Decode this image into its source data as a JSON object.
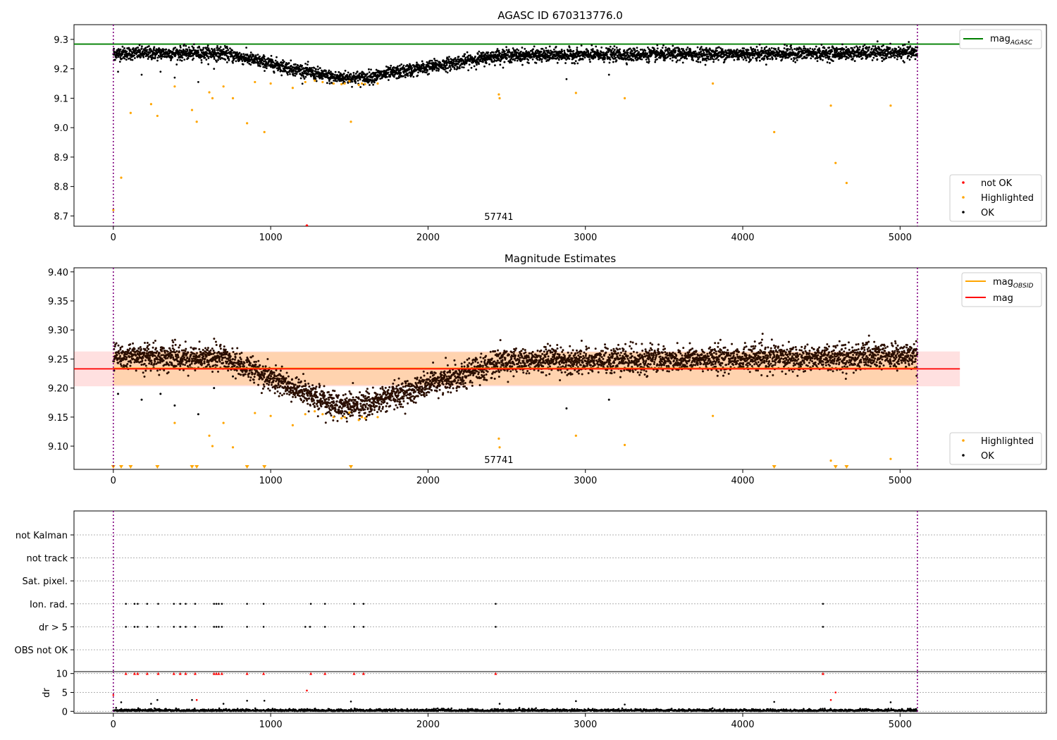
{
  "chart_data": [
    {
      "type": "scatter",
      "title": "AGASC ID 670313776.0",
      "xlabel": "",
      "ylabel": "",
      "xlim": [
        -250,
        5930
      ],
      "ylim": [
        8.665,
        9.35
      ],
      "xticks": [
        0,
        1000,
        2000,
        3000,
        4000,
        5000
      ],
      "yticks": [
        8.7,
        8.8,
        8.9,
        9.0,
        9.1,
        9.2,
        9.3
      ],
      "ytick_labels": [
        "8.7",
        "8.8",
        "8.9",
        "9.0",
        "9.1",
        "9.2",
        "9.3"
      ],
      "vlines": [
        0,
        5110
      ],
      "annotation": "57741",
      "hlines": [
        {
          "name": "mag_AGASC",
          "y": 9.284,
          "color": "#008000"
        }
      ],
      "series": [
        {
          "name": "not OK",
          "color": "#ff0000",
          "x": [
            1230
          ],
          "y": [
            8.667
          ]
        },
        {
          "name": "Highlighted",
          "color": "#ffa500",
          "x": [
            0,
            50,
            110,
            240,
            280,
            390,
            500,
            530,
            610,
            630,
            700,
            760,
            850,
            900,
            960,
            1000,
            1140,
            1220,
            1280,
            1330,
            1400,
            1450,
            1470,
            1500,
            1510,
            1560,
            1580,
            1600,
            1680,
            2450,
            2455,
            2940,
            3250,
            3810,
            4200,
            4560,
            4590,
            4660,
            4940
          ],
          "y": [
            8.72,
            8.83,
            9.05,
            9.08,
            9.04,
            9.14,
            9.06,
            9.02,
            9.12,
            9.1,
            9.14,
            9.1,
            9.015,
            9.155,
            8.985,
            9.15,
            9.135,
            9.155,
            9.16,
            9.155,
            9.15,
            9.148,
            9.15,
            9.158,
            9.02,
            9.145,
            9.15,
            9.148,
            9.15,
            9.113,
            9.1,
            9.118,
            9.1,
            9.15,
            8.985,
            9.075,
            8.88,
            8.812,
            9.075
          ]
        },
        {
          "name": "OK",
          "color": "#000000",
          "x_range": [
            0,
            5110
          ],
          "y_model": "light-curve"
        }
      ],
      "legend": [
        {
          "label": "not OK",
          "color": "#ff0000"
        },
        {
          "label": "Highlighted",
          "color": "#ffa500"
        },
        {
          "label": "OK",
          "color": "#000000"
        }
      ],
      "legend_line": {
        "label": "mag",
        "sub": "AGASC",
        "color": "#008000"
      },
      "legend_placement": "top-right / lower-right",
      "grid": false
    },
    {
      "type": "scatter",
      "title": "Magnitude Estimates",
      "xlabel": "",
      "ylabel": "",
      "xlim": [
        -250,
        5930
      ],
      "ylim": [
        9.06,
        9.407
      ],
      "xticks": [
        0,
        1000,
        2000,
        3000,
        4000,
        5000
      ],
      "yticks": [
        9.1,
        9.15,
        9.2,
        9.25,
        9.3,
        9.35,
        9.4
      ],
      "ytick_labels": [
        "9.10",
        "9.15",
        "9.20",
        "9.25",
        "9.30",
        "9.35",
        "9.40"
      ],
      "vlines": [
        0,
        5110
      ],
      "annotation": "57741",
      "mag_obsid": 9.234,
      "mag": 9.233,
      "mag_band": [
        9.203,
        9.263
      ],
      "mag_obsid_band": [
        9.205,
        9.262
      ],
      "series": [
        {
          "name": "Highlighted",
          "color": "#ffa500",
          "x": [
            390,
            610,
            630,
            700,
            760,
            900,
            1000,
            1140,
            1220,
            1280,
            1330,
            1400,
            1450,
            1470,
            1500,
            1560,
            1580,
            1600,
            1680,
            2450,
            2455,
            2940,
            3250,
            3810,
            4560,
            4940
          ],
          "y": [
            9.14,
            9.118,
            9.1,
            9.14,
            9.098,
            9.157,
            9.152,
            9.136,
            9.155,
            9.16,
            9.155,
            9.15,
            9.148,
            9.15,
            9.158,
            9.145,
            9.15,
            9.148,
            9.15,
            9.113,
            9.098,
            9.118,
            9.102,
            9.152,
            9.075,
            9.078
          ]
        },
        {
          "name": "OK",
          "color": "#000000",
          "x_range": [
            0,
            5110
          ],
          "y_model": "light-curve"
        }
      ],
      "below_limit_markers_x": [
        0,
        50,
        110,
        280,
        500,
        530,
        850,
        960,
        1510,
        4200,
        4590,
        4660
      ],
      "legend": [
        {
          "label": "Highlighted",
          "color": "#ffa500"
        },
        {
          "label": "OK",
          "color": "#000000"
        }
      ],
      "legend_lines": [
        {
          "label": "mag",
          "sub": "OBSID",
          "color": "#ffa500"
        },
        {
          "label": "mag",
          "sub": "",
          "color": "#ff0000"
        }
      ],
      "grid": false
    },
    {
      "type": "scatter",
      "title": "",
      "xlim": [
        -250,
        5930
      ],
      "xticks": [
        0,
        1000,
        2000,
        3000,
        4000,
        5000
      ],
      "vlines": [
        0,
        5110
      ],
      "flag_rows": [
        "not Kalman",
        "not track",
        "Sat. pixel.",
        "Ion. rad.",
        "dr > 5",
        "OBS not OK"
      ],
      "flag_points": {
        "Ion. rad.": [
          80,
          135,
          155,
          215,
          285,
          385,
          425,
          460,
          520,
          640,
          655,
          670,
          690,
          850,
          955,
          1255,
          1345,
          1530,
          1590,
          2430,
          4510
        ],
        "dr > 5": [
          80,
          135,
          155,
          215,
          285,
          385,
          425,
          460,
          520,
          640,
          655,
          670,
          690,
          850,
          955,
          1220,
          1250,
          1345,
          1530,
          1590,
          2430,
          4510
        ]
      },
      "dr_panel": {
        "ylabel": "dr",
        "ylim": [
          -0.5,
          10.5
        ],
        "yticks": [
          0,
          5,
          10
        ],
        "ytick_labels": [
          "0",
          "5",
          "10"
        ],
        "capped_x": [
          80,
          135,
          155,
          215,
          285,
          385,
          425,
          460,
          520,
          640,
          655,
          670,
          690,
          850,
          955,
          1255,
          1345,
          1530,
          1590,
          2430,
          4510
        ],
        "outliers": [
          {
            "x": 0,
            "y": 4.3,
            "color": "#ff0000"
          },
          {
            "x": 50,
            "y": 2.4,
            "color": "#000000"
          },
          {
            "x": 240,
            "y": 2.0,
            "color": "#000000"
          },
          {
            "x": 280,
            "y": 3.0,
            "color": "#000000"
          },
          {
            "x": 500,
            "y": 3.0,
            "color": "#000000"
          },
          {
            "x": 530,
            "y": 3.0,
            "color": "#ff0000"
          },
          {
            "x": 700,
            "y": 2.0,
            "color": "#000000"
          },
          {
            "x": 850,
            "y": 2.8,
            "color": "#000000"
          },
          {
            "x": 960,
            "y": 2.8,
            "color": "#000000"
          },
          {
            "x": 1230,
            "y": 5.5,
            "color": "#ff0000"
          },
          {
            "x": 1510,
            "y": 2.6,
            "color": "#000000"
          },
          {
            "x": 2455,
            "y": 2.0,
            "color": "#000000"
          },
          {
            "x": 2940,
            "y": 2.7,
            "color": "#000000"
          },
          {
            "x": 3250,
            "y": 1.8,
            "color": "#000000"
          },
          {
            "x": 4200,
            "y": 2.5,
            "color": "#000000"
          },
          {
            "x": 4560,
            "y": 3.0,
            "color": "#ff0000"
          },
          {
            "x": 4590,
            "y": 5.0,
            "color": "#ff0000"
          },
          {
            "x": 4940,
            "y": 2.4,
            "color": "#000000"
          }
        ],
        "colors": {
          "capped": "#ff0000",
          "normal": "#000000"
        }
      },
      "grid": true
    }
  ]
}
